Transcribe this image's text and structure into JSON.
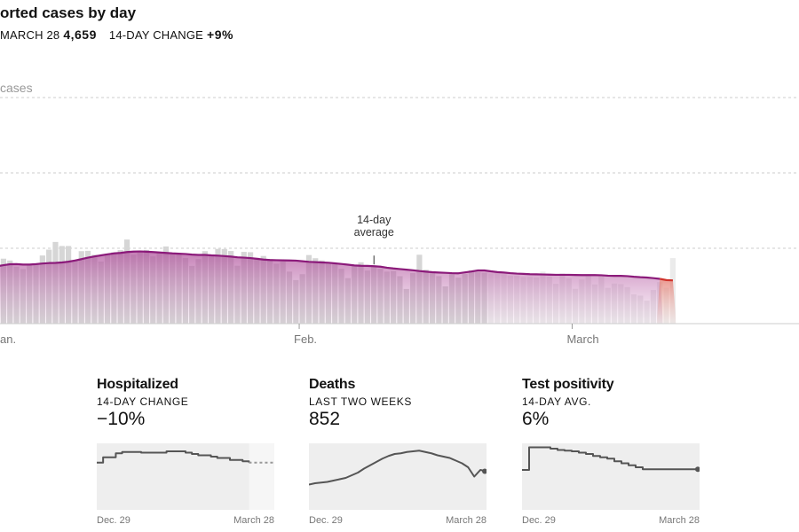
{
  "header": {
    "title": "orted cases by day",
    "date_label": "MARCH 28",
    "count": "4,659",
    "change_label": "14-DAY CHANGE",
    "change_value": "+9%"
  },
  "chart_data": [
    {
      "type": "bar",
      "title": "orted cases by day",
      "ylabel": "cases",
      "x_ticks": [
        "an.",
        "Feb.",
        "March"
      ],
      "annotation": "14-day average",
      "series": [
        {
          "name": "daily cases",
          "values": [
            3850,
            4310,
            4190,
            3780,
            3620,
            3930,
            3920,
            4520,
            4910,
            5420,
            5150,
            5150,
            4170,
            4810,
            4830,
            4570,
            4120,
            4640,
            4740,
            4880,
            5580,
            4560,
            4850,
            4890,
            4460,
            4710,
            5120,
            4670,
            4600,
            4350,
            3830,
            4280,
            4810,
            4590,
            4960,
            4950,
            4820,
            3840,
            4760,
            4740,
            4370,
            4490,
            4290,
            3970,
            4120,
            3450,
            2890,
            3280,
            4550,
            4340,
            4190,
            4040,
            4010,
            3640,
            3020,
            3900,
            4070,
            3520,
            3860,
            3640,
            3450,
            3490,
            3150,
            2300,
            3350,
            4570,
            3580,
            3430,
            3150,
            2470,
            3290,
            3050,
            3290,
            3540,
            3400,
            3370,
            3320,
            3440,
            3280,
            3180,
            3180,
            3080,
            3100,
            3060,
            3450,
            3120,
            2640,
            3330,
            3000,
            2310,
            2930,
            3270,
            2600,
            3230,
            2370,
            2660,
            2620,
            2420,
            1940,
            1860,
            1520,
            2230,
            2760,
            2380,
            4350
          ]
        },
        {
          "name": "14-day average",
          "values": [
            3800,
            3880,
            3940,
            3950,
            3920,
            3920,
            3950,
            3990,
            4020,
            4030,
            4060,
            4110,
            4190,
            4280,
            4380,
            4460,
            4530,
            4600,
            4660,
            4690,
            4750,
            4780,
            4790,
            4770,
            4750,
            4720,
            4690,
            4660,
            4640,
            4620,
            4580,
            4560,
            4560,
            4530,
            4510,
            4480,
            4450,
            4400,
            4380,
            4350,
            4300,
            4250,
            4220,
            4210,
            4200,
            4190,
            4180,
            4140,
            4100,
            4080,
            4060,
            4040,
            4000,
            3960,
            3910,
            3860,
            3840,
            3830,
            3810,
            3780,
            3710,
            3660,
            3620,
            3580,
            3540,
            3490,
            3450,
            3410,
            3390,
            3370,
            3350,
            3340,
            3400,
            3460,
            3530,
            3530,
            3470,
            3420,
            3390,
            3350,
            3320,
            3300,
            3280,
            3270,
            3260,
            3250,
            3240,
            3240,
            3240,
            3230,
            3220,
            3220,
            3220,
            3210,
            3180,
            3170,
            3170,
            3150,
            3110,
            3080,
            3060,
            3020,
            2970,
            2890,
            2870
          ]
        }
      ]
    },
    {
      "type": "line",
      "title": "Hospitalized",
      "subtitle": "14-DAY CHANGE",
      "value": "−10%",
      "x_labels": [
        "Dec. 29",
        "March 28"
      ],
      "series": [
        {
          "name": "hospitalized",
          "values": [
            71,
            79,
            79,
            85,
            87,
            87,
            87,
            86,
            86,
            86,
            86,
            88,
            88,
            88,
            86,
            84,
            82,
            82,
            80,
            78,
            78,
            75,
            75,
            73,
            71,
            71,
            71,
            71,
            71
          ]
        }
      ]
    },
    {
      "type": "line",
      "title": "Deaths",
      "subtitle": "LAST TWO WEEKS",
      "value": "852",
      "x_labels": [
        "Dec. 29",
        "March 28"
      ],
      "series": [
        {
          "name": "deaths",
          "values": [
            38,
            40,
            41,
            42,
            44,
            46,
            48,
            52,
            56,
            62,
            67,
            72,
            77,
            81,
            84,
            85,
            87,
            88,
            89,
            87,
            85,
            82,
            80,
            78,
            74,
            70,
            64,
            50,
            60,
            58
          ]
        }
      ]
    },
    {
      "type": "line",
      "title": "Test positivity",
      "subtitle": "14-DAY AVG.",
      "value": "6%",
      "x_labels": [
        "Dec. 29",
        "March 28"
      ],
      "series": [
        {
          "name": "test positivity",
          "values": [
            60,
            94,
            94,
            94,
            92,
            90,
            89,
            88,
            86,
            84,
            81,
            79,
            77,
            73,
            70,
            67,
            64,
            61,
            61,
            61,
            61,
            61,
            61,
            61,
            61,
            61
          ]
        }
      ]
    }
  ],
  "colors": {
    "bar_gray": "#d6d6d6",
    "purple": "#8b1a7a",
    "red": "#d0342c"
  }
}
